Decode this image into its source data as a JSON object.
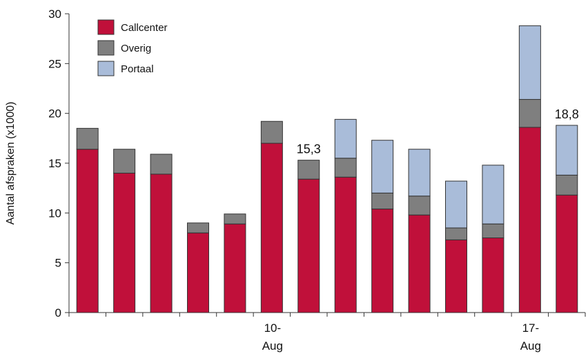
{
  "chart_data": {
    "type": "bar",
    "stacked": true,
    "ylabel": "Aantal afspraken (x1000)",
    "ylim": [
      0,
      30
    ],
    "yticks": [
      0,
      5,
      10,
      15,
      20,
      25,
      30
    ],
    "x_tick_labels": [
      {
        "index": 5,
        "line1": "10-",
        "line2": "Aug"
      },
      {
        "index": 12,
        "line1": "17-",
        "line2": "Aug"
      }
    ],
    "legend_position": "top-left",
    "grid": false,
    "series": [
      {
        "name": "Callcenter",
        "color": "#c0103a",
        "values": [
          16.4,
          14.0,
          13.9,
          8.0,
          8.9,
          17.0,
          13.4,
          13.6,
          10.4,
          9.8,
          7.3,
          7.5,
          18.6,
          11.8
        ]
      },
      {
        "name": "Overig",
        "color": "#7f7f7f",
        "values": [
          2.1,
          2.4,
          2.0,
          1.0,
          1.0,
          2.2,
          1.9,
          1.9,
          1.6,
          1.9,
          1.2,
          1.4,
          2.8,
          2.0
        ]
      },
      {
        "name": "Portaal",
        "color": "#a9bcd9",
        "values": [
          0,
          0,
          0,
          0,
          0,
          0,
          0,
          3.9,
          5.3,
          4.7,
          4.7,
          5.9,
          7.4,
          5.0
        ]
      }
    ],
    "data_labels": [
      {
        "index": 6,
        "text": "15,3"
      },
      {
        "index": 13,
        "text": "18,8"
      }
    ]
  }
}
